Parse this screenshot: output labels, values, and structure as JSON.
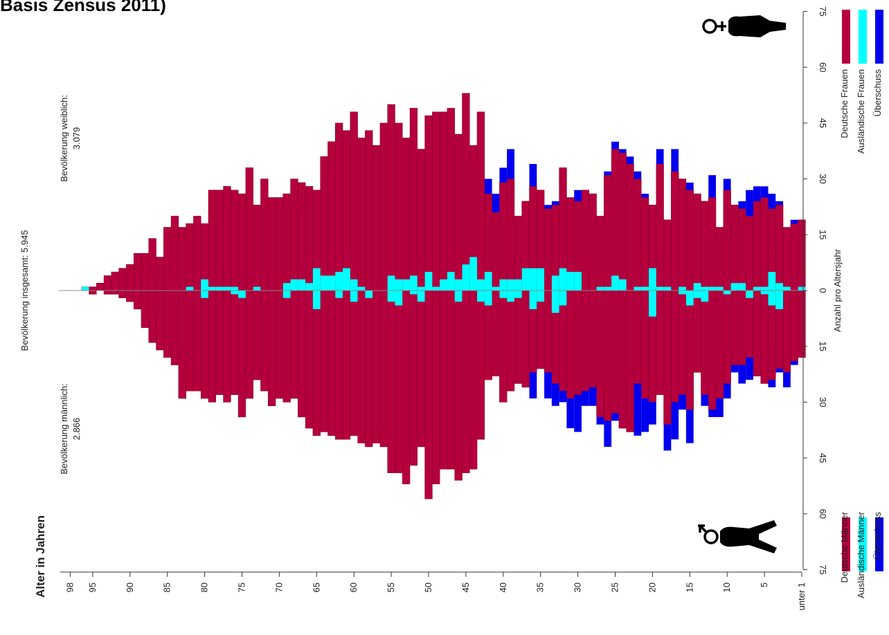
{
  "title_fragment": "Basis Zensus 2011)",
  "chart_data": {
    "type": "bar",
    "orientation": "rotated-population-pyramid",
    "axis_title_age": "Alter in Jahren",
    "axis_title_count": "Anzahl pro Altersjahr",
    "total_label": "Bevölkerung insgesamt: 5.945",
    "female_total_label": "Bevölkerung weiblich:",
    "female_total_value": "3.079",
    "male_total_label": "Bevölkerung männlich:",
    "male_total_value": "2.866",
    "age_tick_labels": [
      "98",
      "95",
      "90",
      "85",
      "80",
      "75",
      "70",
      "65",
      "60",
      "55",
      "50",
      "45",
      "40",
      "35",
      "30",
      "25",
      "20",
      "15",
      "10",
      "5",
      "unter 1"
    ],
    "age_tick_values": [
      98,
      95,
      90,
      85,
      80,
      75,
      70,
      65,
      60,
      55,
      50,
      45,
      40,
      35,
      30,
      25,
      20,
      15,
      10,
      5,
      0
    ],
    "count_ticks_female": [
      "75",
      "60",
      "45",
      "30",
      "15",
      "0"
    ],
    "count_ticks_male": [
      "15",
      "30",
      "45",
      "60",
      "75"
    ],
    "count_range": [
      -75,
      75
    ],
    "age_range": [
      0,
      98
    ],
    "legend_female": [
      "Deutsche Frauen",
      "Ausländische Frauen",
      "Überschuss"
    ],
    "legend_male": [
      "Deutsche Männer",
      "Ausländische Männer",
      "Überschuss"
    ],
    "colors": {
      "german": "#b5003d",
      "foreign": "#00ffff",
      "surplus": "#0000ee"
    },
    "ages": [
      0,
      1,
      2,
      3,
      4,
      5,
      6,
      7,
      8,
      9,
      10,
      11,
      12,
      13,
      14,
      15,
      16,
      17,
      18,
      19,
      20,
      21,
      22,
      23,
      24,
      25,
      26,
      27,
      28,
      29,
      30,
      31,
      32,
      33,
      34,
      35,
      36,
      37,
      38,
      39,
      40,
      41,
      42,
      43,
      44,
      45,
      46,
      47,
      48,
      49,
      50,
      51,
      52,
      53,
      54,
      55,
      56,
      57,
      58,
      59,
      60,
      61,
      62,
      63,
      64,
      65,
      66,
      67,
      68,
      69,
      70,
      71,
      72,
      73,
      74,
      75,
      76,
      77,
      78,
      79,
      80,
      81,
      82,
      83,
      84,
      85,
      86,
      87,
      88,
      89,
      90,
      91,
      92,
      93,
      94,
      95,
      96
    ],
    "female_german": [
      19,
      18,
      17,
      23,
      22,
      25,
      24,
      20,
      22,
      23,
      27,
      17,
      25,
      24,
      26,
      27,
      30,
      32,
      19,
      34,
      23,
      25,
      30,
      34,
      37,
      38,
      31,
      20,
      26,
      27,
      24,
      25,
      33,
      23,
      22,
      27,
      28,
      24,
      20,
      30,
      29,
      21,
      26,
      48,
      39,
      53,
      42,
      49,
      48,
      48,
      47,
      38,
      49,
      41,
      45,
      50,
      45,
      39,
      43,
      41,
      48,
      43,
      45,
      40,
      36,
      27,
      28,
      29,
      30,
      26,
      25,
      25,
      30,
      23,
      33,
      26,
      27,
      28,
      27,
      27,
      18,
      20,
      18,
      17,
      20,
      17,
      9,
      14,
      10,
      10,
      7,
      6,
      5,
      4,
      2,
      1,
      1
    ],
    "female_surplus": [
      0,
      1,
      0,
      1,
      4,
      3,
      4,
      7,
      2,
      0,
      3,
      0,
      6,
      0,
      0,
      2,
      0,
      6,
      0,
      4,
      0,
      1,
      2,
      2,
      1,
      2,
      1,
      0,
      0,
      0,
      3,
      0,
      0,
      1,
      1,
      0,
      6,
      0,
      0,
      8,
      4,
      5,
      4,
      0,
      0,
      0,
      0,
      0,
      0,
      0,
      0,
      0,
      0,
      0,
      0,
      0,
      0,
      0,
      0,
      0,
      0,
      0,
      0,
      0,
      0,
      0,
      0,
      0,
      0,
      0,
      0,
      0,
      0,
      0,
      0,
      0,
      0,
      0,
      0,
      0,
      0,
      0,
      0,
      0,
      0,
      0,
      0,
      0,
      0,
      0,
      0,
      0,
      0,
      0,
      0,
      0,
      0
    ],
    "female_foreign": [
      1,
      0,
      1,
      2,
      5,
      1,
      1,
      0,
      2,
      2,
      0,
      1,
      1,
      1,
      2,
      0,
      1,
      0,
      1,
      1,
      6,
      1,
      1,
      0,
      3,
      4,
      1,
      1,
      0,
      0,
      5,
      5,
      6,
      4,
      0,
      6,
      6,
      6,
      3,
      3,
      3,
      1,
      5,
      3,
      9,
      7,
      3,
      5,
      3,
      1,
      5,
      1,
      4,
      3,
      3,
      4,
      0,
      0,
      0,
      1,
      3,
      6,
      5,
      4,
      4,
      6,
      2,
      3,
      3,
      2,
      0,
      0,
      0,
      1,
      0,
      0,
      1,
      1,
      1,
      1,
      3,
      0,
      1,
      0,
      0,
      0,
      0,
      0,
      0,
      0,
      0,
      0,
      0,
      0,
      0,
      0,
      1
    ],
    "male_german": [
      18,
      19,
      22,
      21,
      24,
      25,
      23,
      18,
      20,
      20,
      25,
      29,
      32,
      28,
      22,
      32,
      28,
      30,
      36,
      28,
      30,
      29,
      25,
      38,
      37,
      33,
      35,
      34,
      26,
      27,
      28,
      29,
      27,
      25,
      22,
      21,
      22,
      26,
      25,
      27,
      30,
      23,
      24,
      40,
      48,
      49,
      51,
      48,
      48,
      52,
      56,
      42,
      47,
      52,
      49,
      49,
      42,
      41,
      42,
      41,
      39,
      40,
      40,
      39,
      38,
      39,
      37,
      34,
      29,
      30,
      29,
      31,
      27,
      24,
      29,
      34,
      28,
      30,
      28,
      30,
      29,
      27,
      27,
      29,
      20,
      18,
      16,
      14,
      10,
      5,
      3,
      2,
      1,
      1,
      0,
      1,
      0
    ],
    "male_surplus": [
      0,
      1,
      4,
      1,
      2,
      0,
      0,
      6,
      5,
      2,
      4,
      5,
      2,
      3,
      0,
      9,
      4,
      10,
      7,
      0,
      6,
      9,
      14,
      0,
      0,
      2,
      7,
      2,
      5,
      4,
      10,
      8,
      3,
      6,
      7,
      0,
      7,
      0,
      0,
      0,
      0,
      0,
      0,
      0,
      0,
      0,
      0,
      0,
      0,
      0,
      0,
      0,
      0,
      0,
      0,
      0,
      0,
      0,
      0,
      0,
      0,
      0,
      0,
      0,
      0,
      0,
      0,
      0,
      0,
      0,
      0,
      0,
      0,
      0,
      0,
      0,
      0,
      0,
      0,
      0,
      0,
      0,
      0,
      0,
      0,
      0,
      0,
      0,
      0,
      0,
      0,
      0,
      0,
      0,
      0,
      0,
      0
    ],
    "male_foreign": [
      0,
      0,
      0,
      5,
      4,
      1,
      0,
      2,
      0,
      0,
      1,
      0,
      0,
      3,
      2,
      4,
      1,
      0,
      0,
      0,
      7,
      0,
      0,
      0,
      0,
      0,
      0,
      0,
      0,
      0,
      0,
      0,
      4,
      6,
      0,
      3,
      5,
      0,
      2,
      3,
      2,
      0,
      4,
      3,
      0,
      0,
      3,
      0,
      0,
      0,
      0,
      3,
      1,
      0,
      4,
      3,
      0,
      0,
      2,
      0,
      3,
      0,
      2,
      0,
      0,
      5,
      0,
      0,
      0,
      2,
      0,
      0,
      0,
      0,
      0,
      2,
      1,
      0,
      0,
      0,
      2,
      0,
      0,
      0,
      0,
      0,
      0,
      0,
      0,
      0,
      0,
      0,
      0,
      0,
      0,
      0,
      0
    ]
  }
}
